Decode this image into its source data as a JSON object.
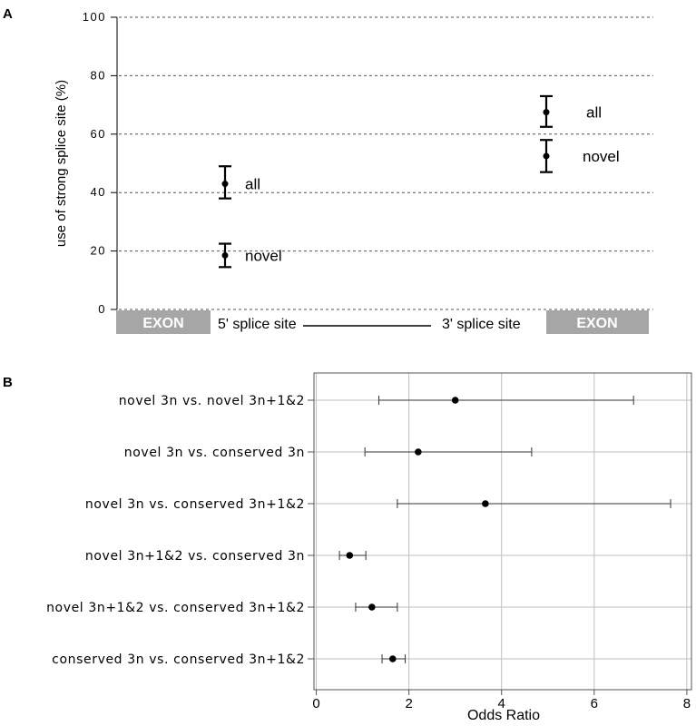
{
  "chart_data": [
    {
      "panel": "A",
      "type": "scatter",
      "ylabel": "use of strong splice site (%)",
      "ylim": [
        0,
        100
      ],
      "yticks": [
        0,
        20,
        40,
        60,
        80,
        100
      ],
      "grid": "horizontal dotted",
      "groups": [
        {
          "site": "5' splice site",
          "points": [
            {
              "label": "all",
              "value": 43,
              "low": 38,
              "high": 49
            },
            {
              "label": "novel",
              "value": 18.5,
              "low": 14.5,
              "high": 22.5
            }
          ]
        },
        {
          "site": "3' splice site",
          "points": [
            {
              "label": "all",
              "value": 67.5,
              "low": 62.5,
              "high": 73
            },
            {
              "label": "novel",
              "value": 52.5,
              "low": 47,
              "high": 58
            }
          ]
        }
      ],
      "gene_diagram": {
        "left_exon": "EXON",
        "left_site": "5' splice site",
        "right_site": "3' splice site",
        "right_exon": "EXON"
      }
    },
    {
      "panel": "B",
      "type": "scatter",
      "xlabel": "Odds Ratio",
      "xlim": [
        -0.05,
        8.1
      ],
      "xticks": [
        0,
        2,
        4,
        6,
        8
      ],
      "grid": true,
      "categories": [
        "novel 3n vs. novel 3n+1&2",
        "novel 3n vs. conserved 3n",
        "novel 3n vs. conserved 3n+1&2",
        "novel 3n+1&2 vs. conserved 3n",
        "novel 3n+1&2 vs. conserved 3n+1&2",
        "conserved 3n vs. conserved 3n+1&2"
      ],
      "estimates": [
        3.0,
        2.2,
        3.65,
        0.72,
        1.2,
        1.65
      ],
      "ci_low": [
        1.35,
        1.05,
        1.75,
        0.5,
        0.85,
        1.42
      ],
      "ci_high": [
        6.85,
        4.65,
        7.65,
        1.07,
        1.75,
        1.92
      ]
    }
  ]
}
